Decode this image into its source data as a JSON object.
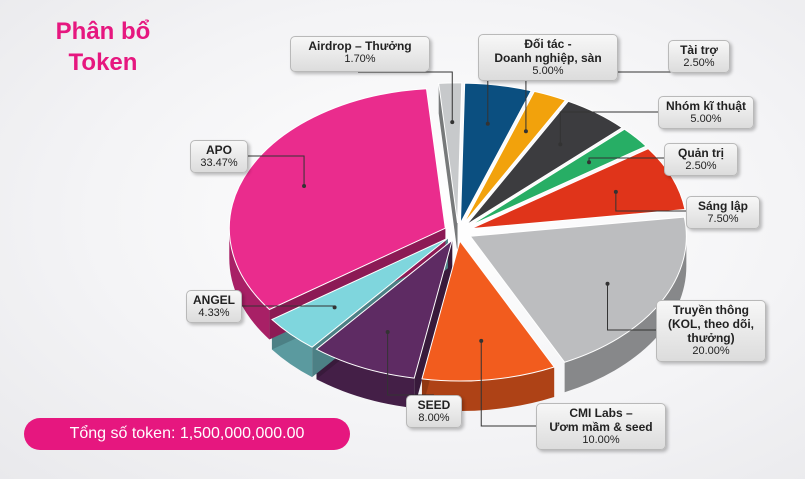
{
  "title": "Phân bổ\nToken",
  "total_label": "Tổng số token: 1,500,000,000.00",
  "chart_data": {
    "type": "pie",
    "title": "Phân bổ Token",
    "unit": "%",
    "slices": [
      {
        "name": "Airdrop – Thưởng",
        "value": 1.7,
        "label": "1.70%",
        "color": "#c7c9cb"
      },
      {
        "name": "Đối tác -\nDoanh nghiệp, sàn",
        "value": 5.0,
        "label": "5.00%",
        "color": "#0b4f80"
      },
      {
        "name": "Tài trợ",
        "value": 2.5,
        "label": "2.50%",
        "color": "#f2a20c"
      },
      {
        "name": "Nhóm kĩ thuật",
        "value": 5.0,
        "label": "5.00%",
        "color": "#3c3c3f"
      },
      {
        "name": "Quản trị",
        "value": 2.5,
        "label": "2.50%",
        "color": "#27ae65"
      },
      {
        "name": "Sáng lập",
        "value": 7.5,
        "label": "7.50%",
        "color": "#e0341a"
      },
      {
        "name": "Truyền thông\n(KOL, theo dõi,\nthưởng)",
        "value": 20.0,
        "label": "20.00%",
        "color": "#bcbdbf"
      },
      {
        "name": "CMI Labs –\nƯơm mầm & seed",
        "value": 10.0,
        "label": "10.00%",
        "color": "#f25c1e"
      },
      {
        "name": "SEED",
        "value": 8.0,
        "label": "8.00%",
        "color": "#5e2b63"
      },
      {
        "name": "ANGEL",
        "value": 4.33,
        "label": "4.33%",
        "color": "#7fd6dd"
      },
      {
        "name": "APO",
        "value": 33.47,
        "label": "33.47%",
        "color": "#ea2c8d"
      }
    ]
  }
}
